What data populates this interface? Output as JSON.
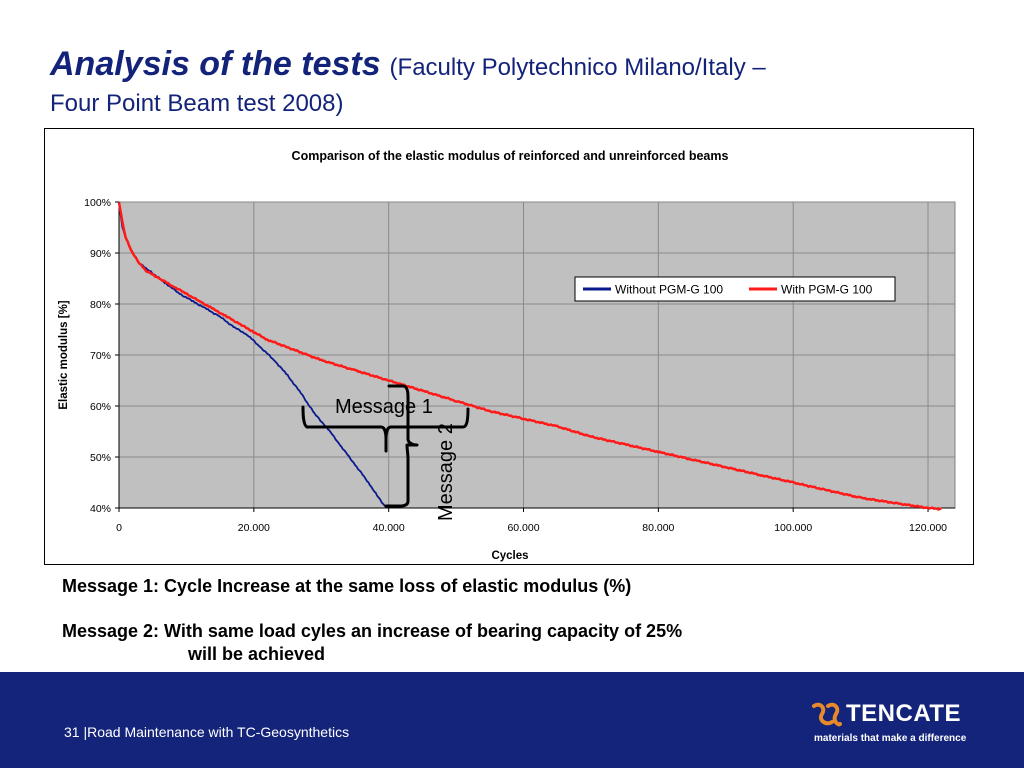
{
  "slide": {
    "title_main": "Analysis of the tests",
    "title_sub": "(Faculty Polytechnico Milano/Italy –",
    "title_sub2": "Four Point Beam test 2008)",
    "message1": "Message 1: Cycle Increase at the same loss of elastic modulus (%)",
    "message2_line1": "Message 2: With same load cyles an increase of bearing capacity of 25%",
    "message2_line2": "will be achieved",
    "footer_text": "31 |Road Maintenance with TC-Geosynthetics",
    "logo_word": "TENCATE",
    "logo_tagline": "materials that make a difference",
    "colors": {
      "title": "#14237a",
      "footer_bg": "#14247a",
      "logo_accent": "#e8892a"
    }
  },
  "chart_data": {
    "type": "line",
    "title": "Comparison of the elastic modulus of reinforced and unreinforced beams",
    "xlabel": "Cycles",
    "ylabel": "Elastic modulus [%]",
    "xlim": [
      0,
      124000
    ],
    "ylim": [
      40,
      100
    ],
    "x_ticks": [
      0,
      20000,
      40000,
      60000,
      80000,
      100000,
      120000
    ],
    "x_tick_labels": [
      "0",
      "20.000",
      "40.000",
      "60.000",
      "80.000",
      "100.000",
      "120.000"
    ],
    "y_ticks": [
      40,
      50,
      60,
      70,
      80,
      90,
      100
    ],
    "y_tick_labels": [
      "40%",
      "50%",
      "60%",
      "70%",
      "80%",
      "90%",
      "100%"
    ],
    "grid": true,
    "plot_background": "#c0c0c0",
    "legend_position": "top-right",
    "series": [
      {
        "name": "Without PGM-G 100",
        "color": "#0a1a8c",
        "x": [
          0,
          500,
          1000,
          2000,
          3000,
          4000,
          5000,
          7000,
          9000,
          11000,
          13000,
          15000,
          17000,
          19000,
          21000,
          23000,
          25000,
          27000,
          29000,
          31000,
          33000,
          35000,
          37000,
          38500,
          39500
        ],
        "y": [
          100,
          95,
          93,
          90,
          88,
          87,
          86,
          84,
          82,
          80.5,
          79,
          77.5,
          75.5,
          74,
          71.5,
          69,
          66,
          62.5,
          58.5,
          55.5,
          52,
          48.5,
          45,
          42,
          40.3
        ]
      },
      {
        "name": "With PGM-G 100",
        "color": "#ff1a1a",
        "x": [
          0,
          500,
          1000,
          2000,
          3000,
          4000,
          6000,
          8000,
          10000,
          12000,
          14000,
          16000,
          18000,
          20000,
          22000,
          25000,
          30000,
          35000,
          40000,
          45000,
          50000,
          55000,
          60000,
          65000,
          70000,
          75000,
          80000,
          85000,
          90000,
          95000,
          100000,
          105000,
          110000,
          115000,
          120000,
          122000
        ],
        "y": [
          100,
          96,
          93,
          90,
          88,
          86.5,
          85,
          83.5,
          82,
          80.5,
          79,
          77.5,
          76,
          74.5,
          73,
          71.5,
          69,
          67,
          65,
          63,
          61,
          59,
          57.5,
          56,
          54,
          52.5,
          51,
          49.5,
          48,
          46.5,
          45,
          43.5,
          42,
          41,
          40,
          39.8
        ]
      }
    ],
    "annotations": [
      {
        "text": "Message 1"
      },
      {
        "text": "Message 2"
      }
    ]
  }
}
